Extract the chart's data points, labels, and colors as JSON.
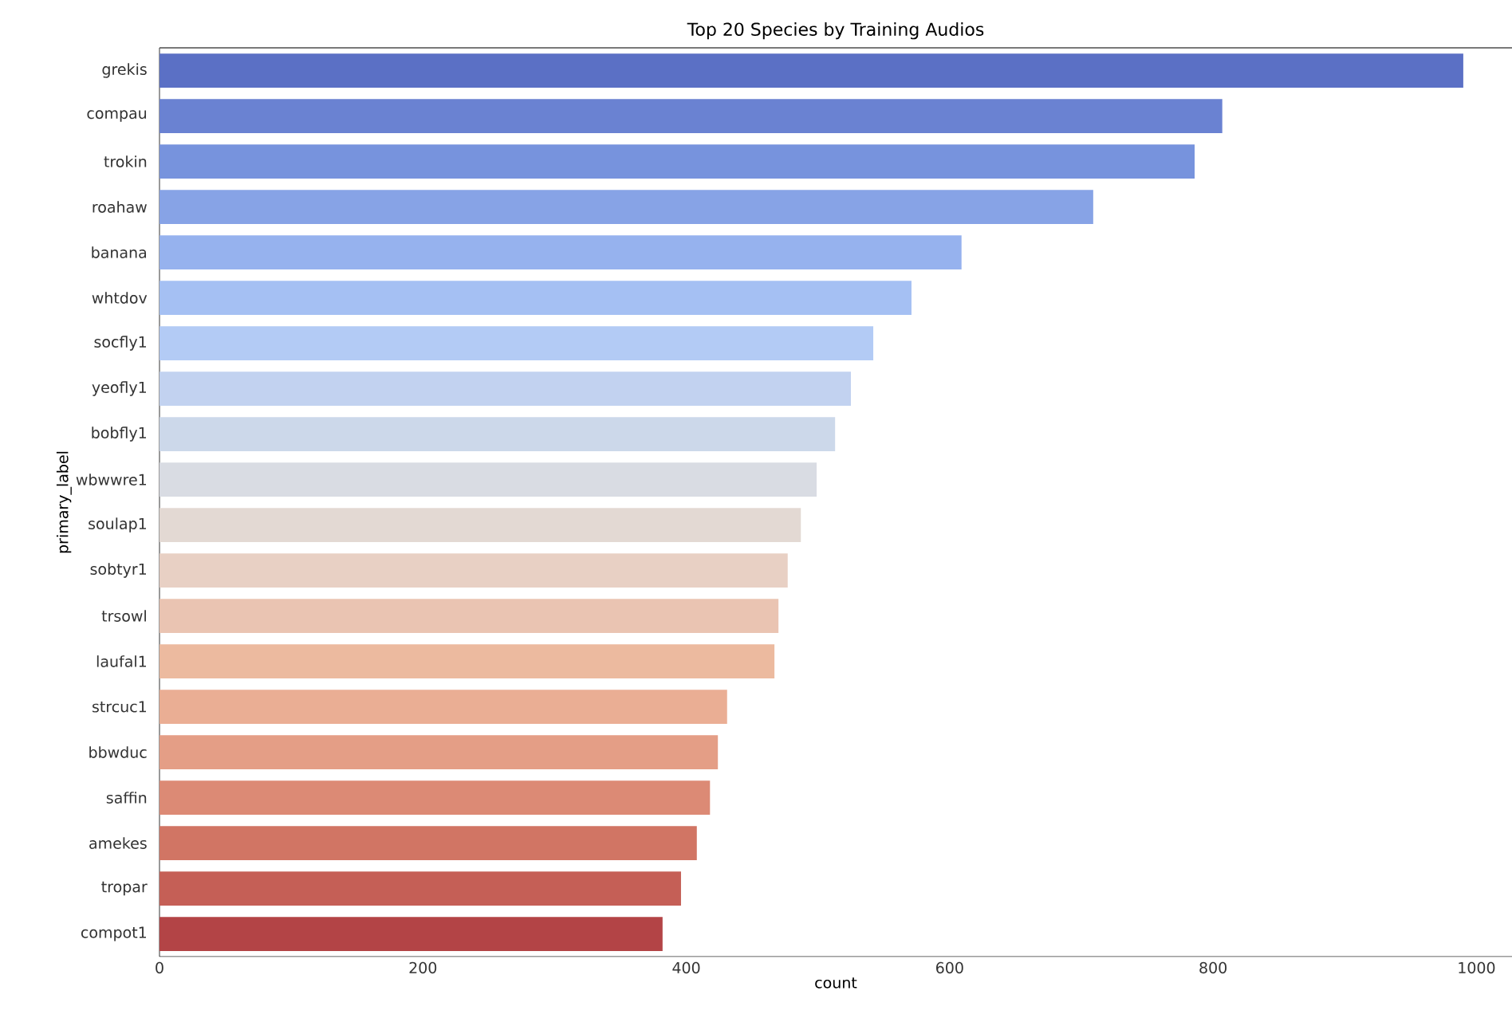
{
  "chart_data": {
    "type": "bar",
    "orientation": "horizontal",
    "title": "Top 20 Species by Training Audios",
    "xlabel": "count",
    "ylabel": "primary_label",
    "categories": [
      "grekis",
      "compau",
      "trokin",
      "roahaw",
      "banana",
      "whtdov",
      "socfly1",
      "yeofly1",
      "bobfly1",
      "wbwwre1",
      "soulap1",
      "sobtyr1",
      "trsowl",
      "laufal1",
      "strcuc1",
      "bbwduc",
      "saffin",
      "amekes",
      "tropar",
      "compot1"
    ],
    "values": [
      990,
      807,
      786,
      709,
      609,
      571,
      542,
      525,
      513,
      499,
      487,
      477,
      470,
      467,
      431,
      424,
      418,
      408,
      396,
      382
    ],
    "colors": [
      "#5b70c5",
      "#6a82d2",
      "#7793dd",
      "#87a3e6",
      "#96b2ee",
      "#a5c0f3",
      "#b3cbf5",
      "#c2d2f0",
      "#ccd8ea",
      "#d9dce3",
      "#e3d9d3",
      "#e8d0c4",
      "#eac4b2",
      "#ecba9f",
      "#eaae94",
      "#e49e86",
      "#dc8a75",
      "#d17564",
      "#c55f56",
      "#b34446"
    ],
    "xlim": [
      0,
      1027
    ],
    "xticks": [
      0,
      200,
      400,
      600,
      800,
      1000
    ],
    "grid": false
  }
}
